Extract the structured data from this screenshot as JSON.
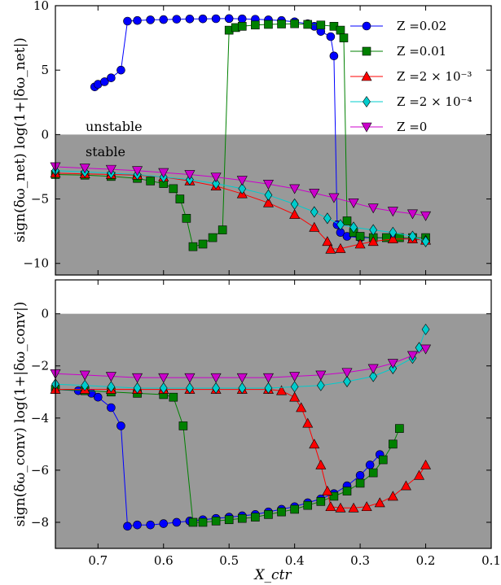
{
  "chart_data": [
    {
      "type": "scatter",
      "panel": "top",
      "ylabel": "sign(δω_net) log(1+|δω_net|)",
      "ylim": [
        -10.9,
        10
      ],
      "yticks": [
        10,
        5,
        0,
        -5,
        -10
      ],
      "xlim": [
        0.765,
        0.1
      ],
      "xaxis_inverted": true,
      "shaded_region": {
        "from": -10.9,
        "to": 0,
        "color": "#999999"
      },
      "region_labels": {
        "above": "unstable",
        "below": "stable"
      },
      "legend": {
        "placement": "top-right"
      },
      "series": [
        {
          "name": "Z =0.02",
          "color": "#0000ff",
          "marker": "circle",
          "points": [
            [
              0.705,
              3.7
            ],
            [
              0.7,
              3.9
            ],
            [
              0.69,
              4.1
            ],
            [
              0.68,
              4.4
            ],
            [
              0.665,
              5.0
            ],
            [
              0.655,
              8.8
            ],
            [
              0.64,
              8.85
            ],
            [
              0.62,
              8.9
            ],
            [
              0.6,
              8.92
            ],
            [
              0.58,
              8.95
            ],
            [
              0.56,
              8.97
            ],
            [
              0.54,
              8.98
            ],
            [
              0.52,
              8.99
            ],
            [
              0.5,
              9.0
            ],
            [
              0.48,
              8.98
            ],
            [
              0.46,
              8.95
            ],
            [
              0.44,
              8.9
            ],
            [
              0.42,
              8.85
            ],
            [
              0.4,
              8.75
            ],
            [
              0.38,
              8.6
            ],
            [
              0.37,
              8.4
            ],
            [
              0.36,
              8.0
            ],
            [
              0.345,
              7.6
            ],
            [
              0.34,
              6.1
            ],
            [
              0.335,
              -7.0
            ],
            [
              0.33,
              -7.6
            ],
            [
              0.32,
              -7.9
            ],
            [
              0.3,
              -8.0
            ],
            [
              0.28,
              -8.0
            ],
            [
              0.25,
              -8.05
            ],
            [
              0.22,
              -8.1
            ],
            [
              0.2,
              -8.2
            ]
          ]
        },
        {
          "name": "Z =0.01",
          "color": "#008000",
          "marker": "square",
          "points": [
            [
              0.765,
              -3.1
            ],
            [
              0.72,
              -3.15
            ],
            [
              0.68,
              -3.25
            ],
            [
              0.64,
              -3.4
            ],
            [
              0.62,
              -3.6
            ],
            [
              0.6,
              -3.8
            ],
            [
              0.585,
              -4.2
            ],
            [
              0.575,
              -5.0
            ],
            [
              0.565,
              -6.5
            ],
            [
              0.555,
              -8.7
            ],
            [
              0.54,
              -8.5
            ],
            [
              0.525,
              -8.0
            ],
            [
              0.51,
              -7.4
            ],
            [
              0.5,
              8.1
            ],
            [
              0.49,
              8.3
            ],
            [
              0.48,
              8.4
            ],
            [
              0.46,
              8.5
            ],
            [
              0.44,
              8.55
            ],
            [
              0.42,
              8.58
            ],
            [
              0.4,
              8.6
            ],
            [
              0.38,
              8.55
            ],
            [
              0.36,
              8.5
            ],
            [
              0.34,
              8.4
            ],
            [
              0.33,
              8.1
            ],
            [
              0.325,
              7.5
            ],
            [
              0.32,
              -6.7
            ],
            [
              0.31,
              -7.6
            ],
            [
              0.3,
              -7.9
            ],
            [
              0.28,
              -8.0
            ],
            [
              0.26,
              -8.0
            ],
            [
              0.24,
              -8.0
            ],
            [
              0.22,
              -8.0
            ],
            [
              0.2,
              -8.0
            ]
          ]
        },
        {
          "name": "Z =2 × 10⁻³",
          "color": "#ff0000",
          "marker": "triangle-up",
          "points": [
            [
              0.765,
              -3.0
            ],
            [
              0.72,
              -3.05
            ],
            [
              0.68,
              -3.1
            ],
            [
              0.64,
              -3.15
            ],
            [
              0.6,
              -3.3
            ],
            [
              0.56,
              -3.6
            ],
            [
              0.52,
              -4.0
            ],
            [
              0.48,
              -4.6
            ],
            [
              0.44,
              -5.3
            ],
            [
              0.4,
              -6.2
            ],
            [
              0.37,
              -7.2
            ],
            [
              0.35,
              -8.3
            ],
            [
              0.345,
              -8.9
            ],
            [
              0.33,
              -8.85
            ],
            [
              0.3,
              -8.5
            ],
            [
              0.28,
              -8.3
            ],
            [
              0.25,
              -8.1
            ],
            [
              0.22,
              -8.1
            ],
            [
              0.2,
              -8.2
            ]
          ]
        },
        {
          "name": "Z =2 × 10⁻⁴",
          "color": "#00cccc",
          "marker": "diamond",
          "points": [
            [
              0.765,
              -2.8
            ],
            [
              0.72,
              -2.9
            ],
            [
              0.68,
              -3.0
            ],
            [
              0.64,
              -3.1
            ],
            [
              0.6,
              -3.3
            ],
            [
              0.56,
              -3.5
            ],
            [
              0.52,
              -3.8
            ],
            [
              0.48,
              -4.2
            ],
            [
              0.44,
              -4.7
            ],
            [
              0.4,
              -5.4
            ],
            [
              0.37,
              -6.0
            ],
            [
              0.35,
              -6.5
            ],
            [
              0.33,
              -7.0
            ],
            [
              0.31,
              -7.2
            ],
            [
              0.28,
              -7.4
            ],
            [
              0.25,
              -7.6
            ],
            [
              0.22,
              -7.9
            ],
            [
              0.2,
              -8.3
            ]
          ]
        },
        {
          "name": "Z =0",
          "color": "#cc00cc",
          "marker": "triangle-down",
          "points": [
            [
              0.765,
              -2.5
            ],
            [
              0.72,
              -2.6
            ],
            [
              0.68,
              -2.7
            ],
            [
              0.64,
              -2.8
            ],
            [
              0.6,
              -2.95
            ],
            [
              0.56,
              -3.1
            ],
            [
              0.52,
              -3.3
            ],
            [
              0.48,
              -3.55
            ],
            [
              0.44,
              -3.85
            ],
            [
              0.4,
              -4.2
            ],
            [
              0.37,
              -4.55
            ],
            [
              0.34,
              -4.9
            ],
            [
              0.31,
              -5.3
            ],
            [
              0.28,
              -5.7
            ],
            [
              0.25,
              -5.95
            ],
            [
              0.22,
              -6.15
            ],
            [
              0.2,
              -6.3
            ]
          ]
        }
      ]
    },
    {
      "type": "scatter",
      "panel": "bottom",
      "ylabel": "sign(δω_conv) log(1+|δω_conv|)",
      "xlabel": "X_ctr",
      "ylim": [
        -9.0,
        1.3
      ],
      "yticks": [
        0,
        -2,
        -4,
        -6,
        -8
      ],
      "xlim": [
        0.765,
        0.1
      ],
      "xticks": [
        0.7,
        0.6,
        0.5,
        0.4,
        0.3,
        0.2,
        0.1
      ],
      "xaxis_inverted": true,
      "shaded_region": {
        "from": -9.0,
        "to": 0,
        "color": "#999999"
      },
      "series": [
        {
          "name": "Z =0.02",
          "color": "#0000ff",
          "marker": "circle",
          "points": [
            [
              0.765,
              -2.9
            ],
            [
              0.73,
              -2.95
            ],
            [
              0.71,
              -3.05
            ],
            [
              0.7,
              -3.2
            ],
            [
              0.68,
              -3.6
            ],
            [
              0.665,
              -4.3
            ],
            [
              0.655,
              -8.15
            ],
            [
              0.64,
              -8.1
            ],
            [
              0.62,
              -8.1
            ],
            [
              0.6,
              -8.05
            ],
            [
              0.58,
              -8.0
            ],
            [
              0.56,
              -7.95
            ],
            [
              0.54,
              -7.9
            ],
            [
              0.52,
              -7.85
            ],
            [
              0.5,
              -7.8
            ],
            [
              0.48,
              -7.75
            ],
            [
              0.46,
              -7.7
            ],
            [
              0.44,
              -7.6
            ],
            [
              0.42,
              -7.5
            ],
            [
              0.4,
              -7.4
            ],
            [
              0.38,
              -7.25
            ],
            [
              0.36,
              -7.1
            ],
            [
              0.34,
              -6.9
            ],
            [
              0.32,
              -6.6
            ],
            [
              0.3,
              -6.2
            ],
            [
              0.285,
              -5.8
            ],
            [
              0.27,
              -5.4
            ]
          ]
        },
        {
          "name": "Z =0.01",
          "color": "#008000",
          "marker": "square",
          "points": [
            [
              0.765,
              -2.9
            ],
            [
              0.72,
              -2.95
            ],
            [
              0.68,
              -3.0
            ],
            [
              0.64,
              -3.05
            ],
            [
              0.6,
              -3.1
            ],
            [
              0.585,
              -3.2
            ],
            [
              0.57,
              -4.3
            ],
            [
              0.555,
              -8.0
            ],
            [
              0.54,
              -8.0
            ],
            [
              0.52,
              -7.95
            ],
            [
              0.5,
              -7.9
            ],
            [
              0.48,
              -7.85
            ],
            [
              0.46,
              -7.8
            ],
            [
              0.44,
              -7.7
            ],
            [
              0.42,
              -7.6
            ],
            [
              0.4,
              -7.5
            ],
            [
              0.38,
              -7.35
            ],
            [
              0.36,
              -7.2
            ],
            [
              0.34,
              -7.0
            ],
            [
              0.32,
              -6.8
            ],
            [
              0.3,
              -6.5
            ],
            [
              0.28,
              -6.1
            ],
            [
              0.265,
              -5.6
            ],
            [
              0.25,
              -5.0
            ],
            [
              0.24,
              -4.4
            ]
          ]
        },
        {
          "name": "Z =2 × 10⁻³",
          "color": "#ff0000",
          "marker": "triangle-up",
          "points": [
            [
              0.765,
              -2.9
            ],
            [
              0.72,
              -2.9
            ],
            [
              0.68,
              -2.9
            ],
            [
              0.64,
              -2.9
            ],
            [
              0.6,
              -2.9
            ],
            [
              0.56,
              -2.9
            ],
            [
              0.52,
              -2.9
            ],
            [
              0.48,
              -2.9
            ],
            [
              0.44,
              -2.9
            ],
            [
              0.42,
              -2.95
            ],
            [
              0.4,
              -3.2
            ],
            [
              0.39,
              -3.6
            ],
            [
              0.38,
              -4.2
            ],
            [
              0.37,
              -5.0
            ],
            [
              0.36,
              -5.8
            ],
            [
              0.35,
              -6.8
            ],
            [
              0.345,
              -7.4
            ],
            [
              0.33,
              -7.45
            ],
            [
              0.31,
              -7.45
            ],
            [
              0.29,
              -7.4
            ],
            [
              0.27,
              -7.25
            ],
            [
              0.25,
              -7.0
            ],
            [
              0.23,
              -6.6
            ],
            [
              0.21,
              -6.2
            ],
            [
              0.2,
              -5.8
            ]
          ]
        },
        {
          "name": "Z =2 × 10⁻⁴",
          "color": "#00cccc",
          "marker": "diamond",
          "points": [
            [
              0.765,
              -2.7
            ],
            [
              0.72,
              -2.75
            ],
            [
              0.68,
              -2.8
            ],
            [
              0.64,
              -2.85
            ],
            [
              0.6,
              -2.85
            ],
            [
              0.56,
              -2.85
            ],
            [
              0.52,
              -2.85
            ],
            [
              0.48,
              -2.85
            ],
            [
              0.44,
              -2.85
            ],
            [
              0.4,
              -2.8
            ],
            [
              0.36,
              -2.75
            ],
            [
              0.32,
              -2.6
            ],
            [
              0.28,
              -2.4
            ],
            [
              0.25,
              -2.1
            ],
            [
              0.22,
              -1.7
            ],
            [
              0.21,
              -1.3
            ],
            [
              0.2,
              -0.6
            ]
          ]
        },
        {
          "name": "Z =0",
          "color": "#cc00cc",
          "marker": "triangle-down",
          "points": [
            [
              0.765,
              -2.3
            ],
            [
              0.72,
              -2.35
            ],
            [
              0.68,
              -2.4
            ],
            [
              0.64,
              -2.45
            ],
            [
              0.6,
              -2.45
            ],
            [
              0.56,
              -2.45
            ],
            [
              0.52,
              -2.45
            ],
            [
              0.48,
              -2.45
            ],
            [
              0.44,
              -2.45
            ],
            [
              0.4,
              -2.4
            ],
            [
              0.36,
              -2.35
            ],
            [
              0.32,
              -2.25
            ],
            [
              0.28,
              -2.1
            ],
            [
              0.25,
              -1.9
            ],
            [
              0.22,
              -1.6
            ],
            [
              0.2,
              -1.35
            ]
          ]
        }
      ]
    }
  ]
}
